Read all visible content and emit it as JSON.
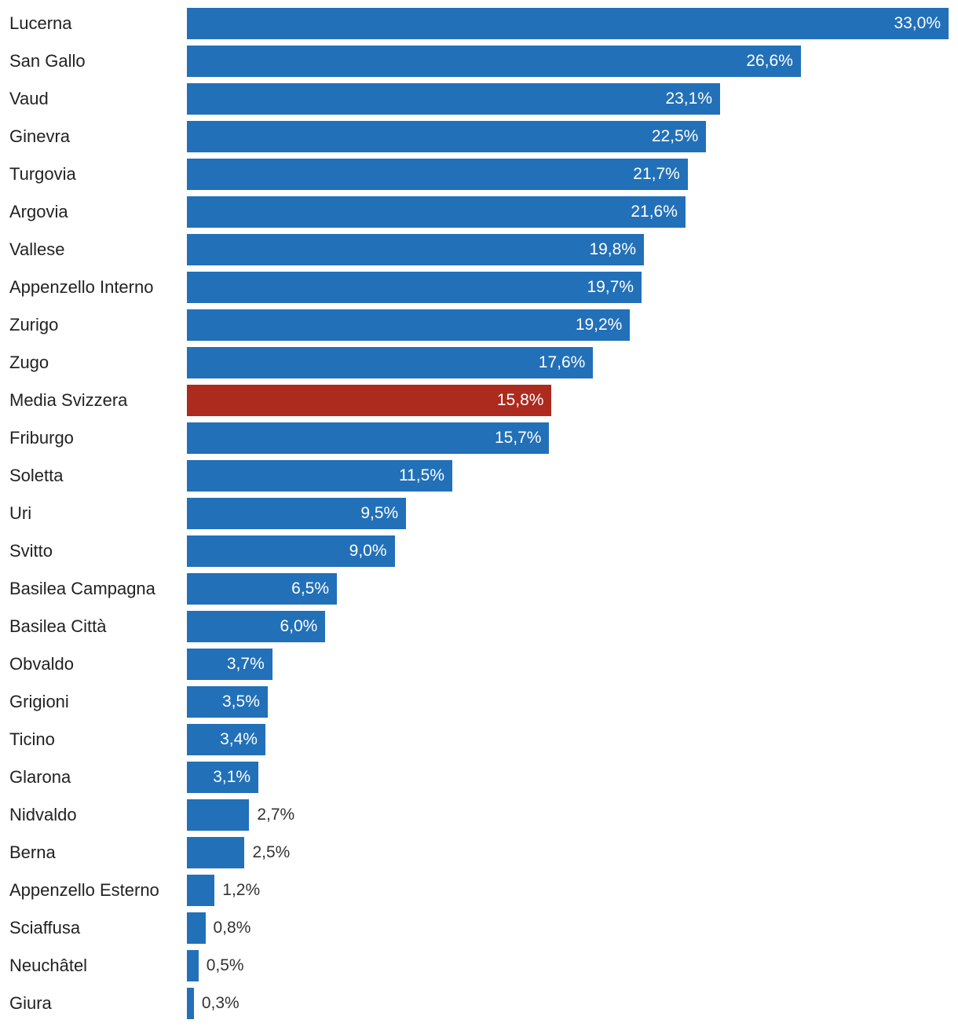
{
  "colors": {
    "bar": "#2270b8",
    "highlight": "#ad2a1e",
    "label_inside": "#ffffff",
    "label_outside": "#333333",
    "category_text": "#222222"
  },
  "chart_data": {
    "type": "bar",
    "orientation": "horizontal",
    "title": "",
    "xlabel": "",
    "ylabel": "",
    "xlim": [
      0,
      33.0
    ],
    "grid": false,
    "legend": "none",
    "highlight_category": "Media Svizzera",
    "categories": [
      "Lucerna",
      "San Gallo",
      "Vaud",
      "Ginevra",
      "Turgovia",
      "Argovia",
      "Vallese",
      "Appenzello Interno",
      "Zurigo",
      "Zugo",
      "Media Svizzera",
      "Friburgo",
      "Soletta",
      "Uri",
      "Svitto",
      "Basilea Campagna",
      "Basilea Città",
      "Obvaldo",
      "Grigioni",
      "Ticino",
      "Glarona",
      "Nidvaldo",
      "Berna",
      "Appenzello Esterno",
      "Sciaffusa",
      "Neuchâtel",
      "Giura"
    ],
    "values": [
      33.0,
      26.6,
      23.1,
      22.5,
      21.7,
      21.6,
      19.8,
      19.7,
      19.2,
      17.6,
      15.8,
      15.7,
      11.5,
      9.5,
      9.0,
      6.5,
      6.0,
      3.7,
      3.5,
      3.4,
      3.1,
      2.7,
      2.5,
      1.2,
      0.8,
      0.5,
      0.3
    ],
    "value_labels": [
      "33,0%",
      "26,6%",
      "23,1%",
      "22,5%",
      "21,7%",
      "21,6%",
      "19,8%",
      "19,7%",
      "19,2%",
      "17,6%",
      "15,8%",
      "15,7%",
      "11,5%",
      "9,5%",
      "9,0%",
      "6,5%",
      "6,0%",
      "3,7%",
      "3,5%",
      "3,4%",
      "3,1%",
      "2,7%",
      "2,5%",
      "1,2%",
      "0,8%",
      "0,5%",
      "0,3%"
    ]
  }
}
